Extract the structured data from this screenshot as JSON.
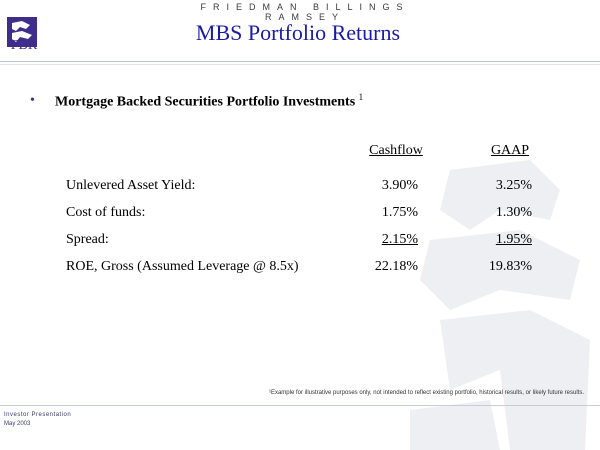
{
  "header": {
    "logo_text": "FBR",
    "firm_name": "FRIEDMAN BILLINGS RAMSEY",
    "title": "MBS Portfolio Returns"
  },
  "section": {
    "bullet": "•",
    "heading": "Mortgage Backed Securities Portfolio Investments",
    "footnote_marker": "1"
  },
  "table": {
    "columns": [
      "Cashflow",
      "GAAP"
    ],
    "rows": [
      {
        "label": "Unlevered Asset Yield:",
        "cashflow": "3.90%",
        "gaap": "3.25%"
      },
      {
        "label": "Cost of funds:",
        "cashflow": "1.75%",
        "gaap": "1.30%"
      },
      {
        "label": "Spread:",
        "cashflow": "2.15%",
        "gaap": "1.95%"
      },
      {
        "label": "ROE, Gross (Assumed Leverage @ 8.5x)",
        "cashflow": "22.18%",
        "gaap": "19.83%"
      }
    ]
  },
  "footnote": "¹Example for illustrative purposes only, not intended to reflect existing portfolio, historical results, or likely future results.",
  "footer": {
    "line1": "Investor Presentation",
    "line2": "May 2003"
  },
  "colors": {
    "title": "#1a1aa6",
    "logo": "#3e2d8a",
    "watermark": "#eeeff3"
  },
  "icons": {
    "logo": "eagle-logo-icon",
    "watermark": "eagle-watermark-icon"
  }
}
